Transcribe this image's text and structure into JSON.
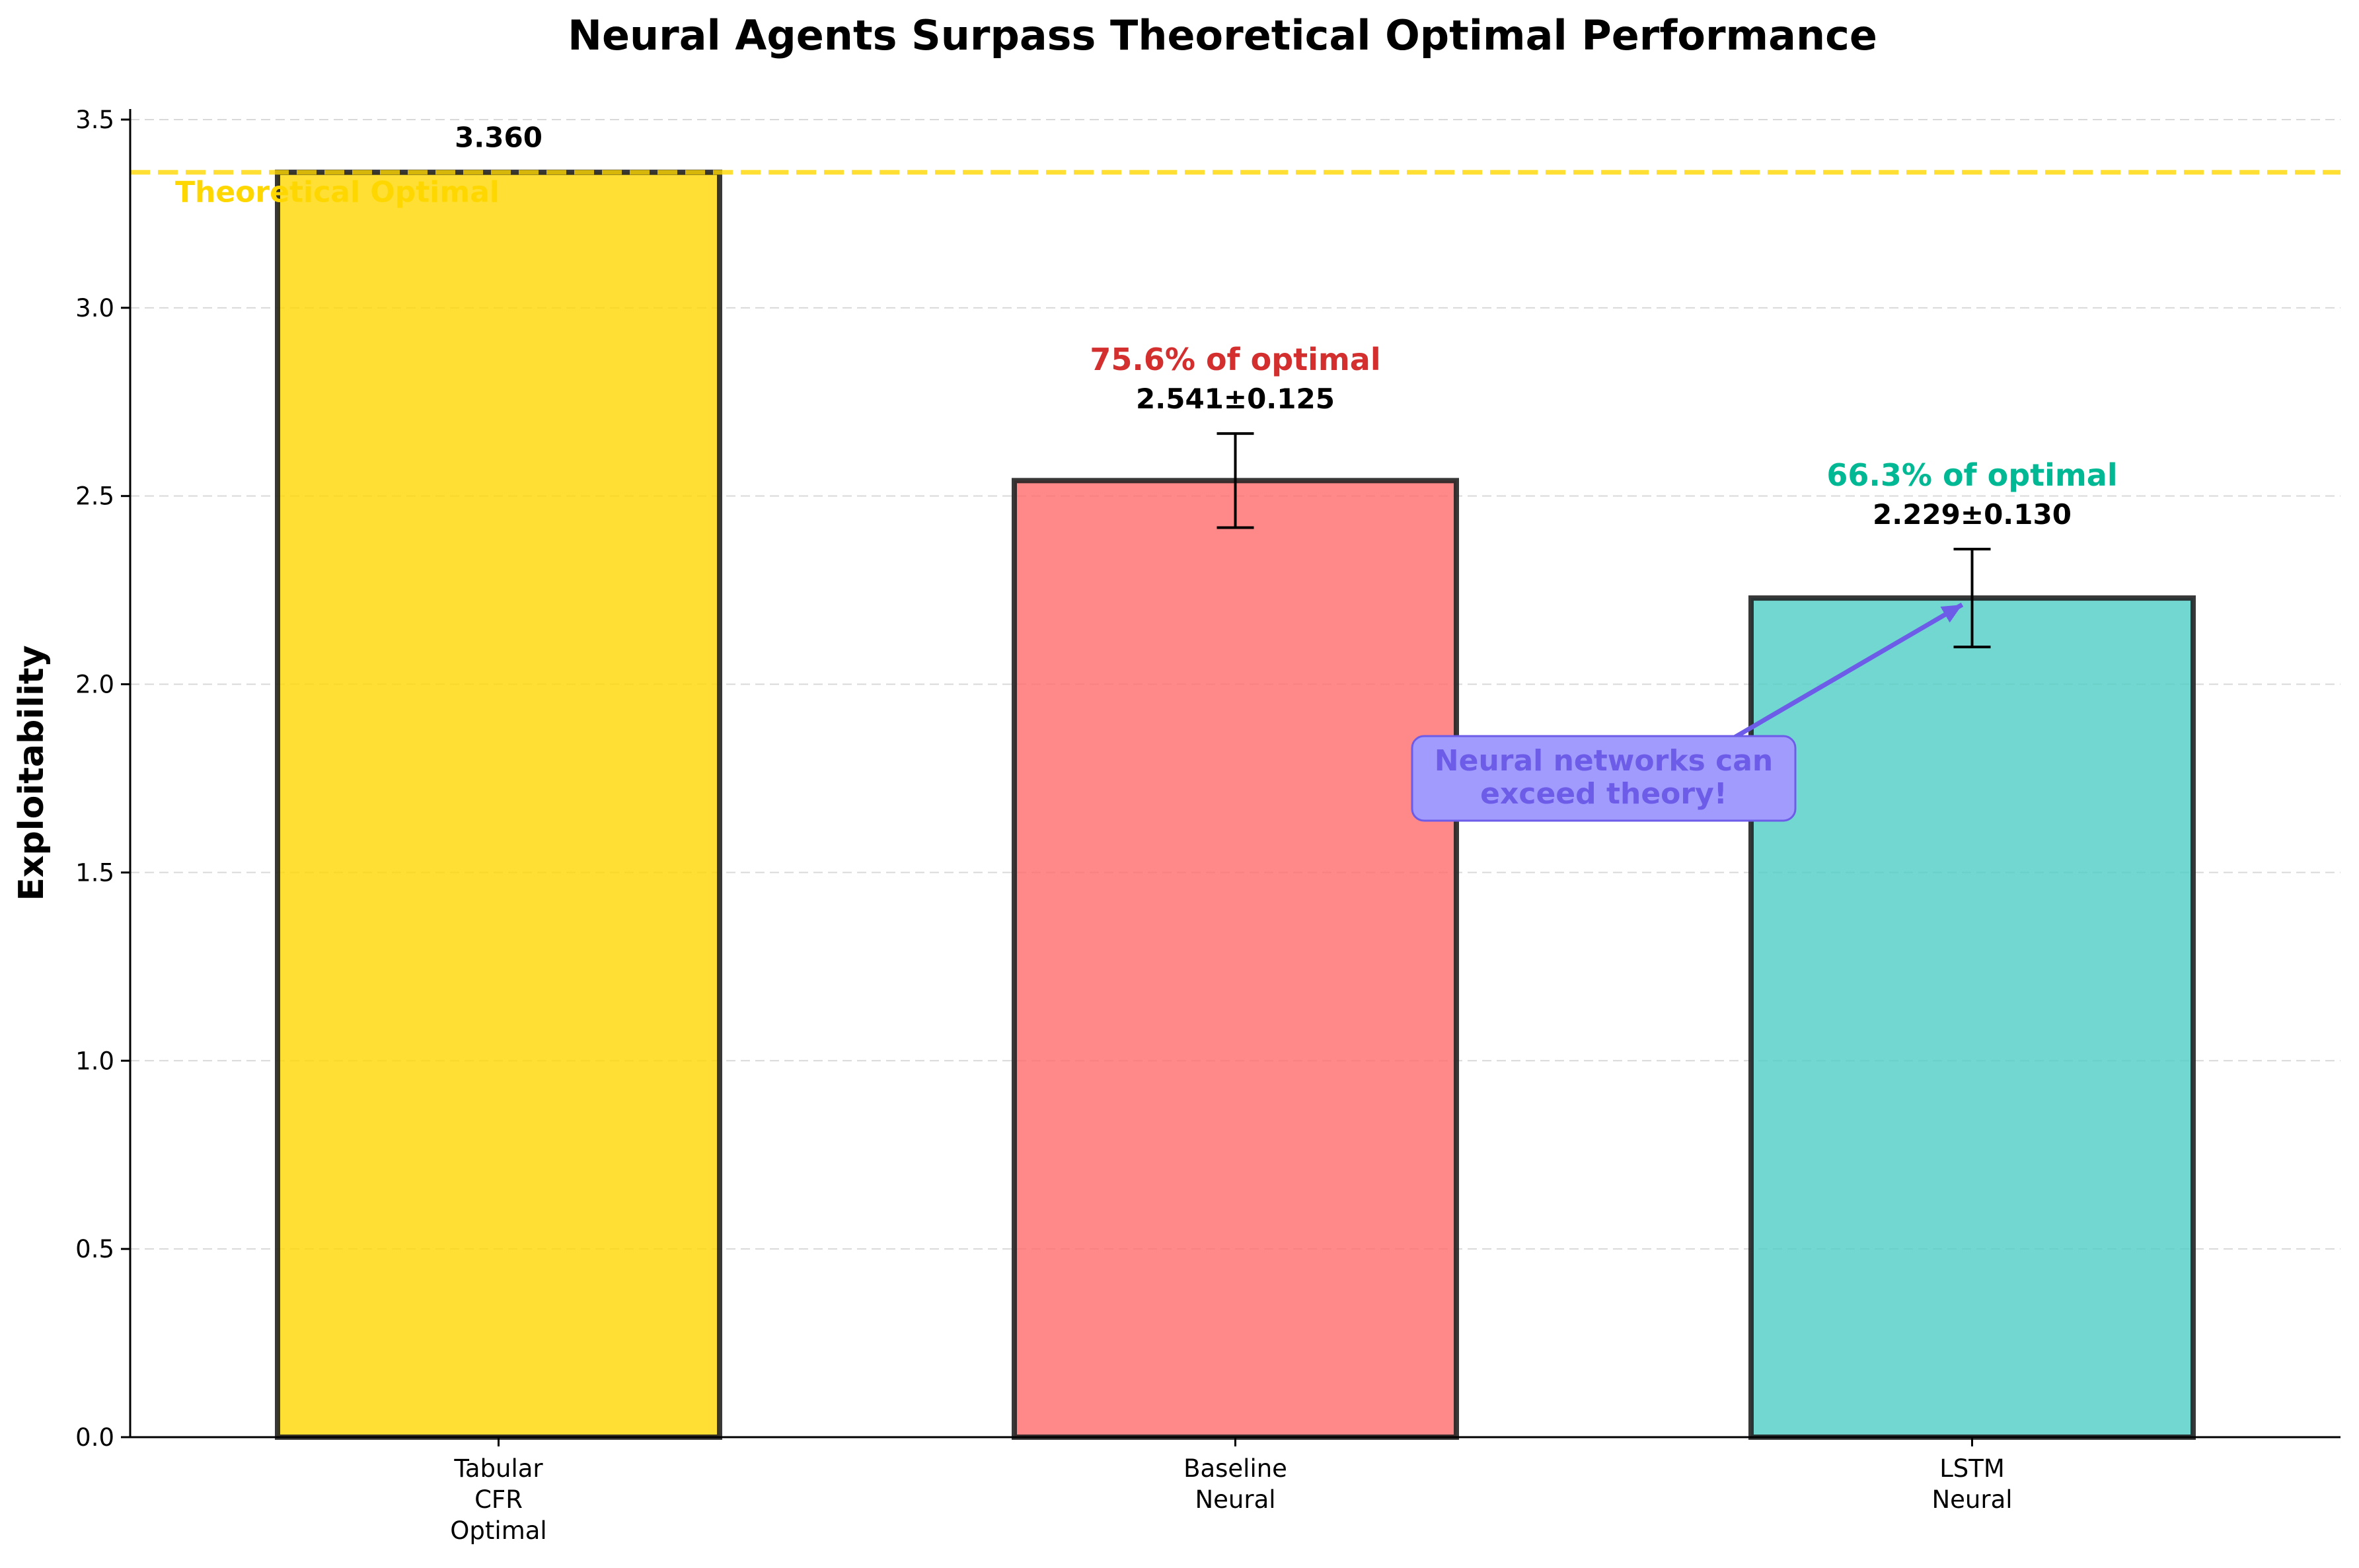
{
  "chart_data": {
    "type": "bar",
    "title": "Neural Agents Surpass Theoretical Optimal Performance",
    "xlabel": "",
    "ylabel": "Exploitability",
    "ylim": [
      0,
      3.528
    ],
    "yticks": [
      0.0,
      0.5,
      1.0,
      1.5,
      2.0,
      2.5,
      3.0,
      3.5
    ],
    "ytick_labels": [
      "0.0",
      "0.5",
      "1.0",
      "1.5",
      "2.0",
      "2.5",
      "3.0",
      "3.5"
    ],
    "grid": "horizontal dashed",
    "categories": [
      [
        "Tabular",
        "CFR",
        "Optimal"
      ],
      [
        "Baseline",
        "Neural"
      ],
      [
        "LSTM",
        "Neural"
      ]
    ],
    "values": [
      3.36,
      2.541,
      2.229
    ],
    "errors": [
      null,
      0.125,
      0.13
    ],
    "value_labels": [
      "3.360",
      "2.541±0.125",
      "2.229±0.130"
    ],
    "percent_labels": [
      "",
      "75.6% of optimal",
      "66.3% of optimal"
    ],
    "colors": [
      "#FFD700",
      "#FF6B6B",
      "#4ECDC4"
    ],
    "percent_label_colors": [
      "",
      "#D32F2F",
      "#00B894"
    ],
    "reference_line": {
      "value": 3.36,
      "label": "Theoretical Optimal",
      "color": "#FFD700"
    },
    "annotation": {
      "text_lines": [
        "Neural networks can",
        "exceed theory!"
      ],
      "target_category": 2,
      "target_value": 2.229,
      "text_x_category": 1.5,
      "text_y_value": 1.75,
      "color": "#6C5CE7",
      "box_color": "#A29BFE"
    }
  }
}
